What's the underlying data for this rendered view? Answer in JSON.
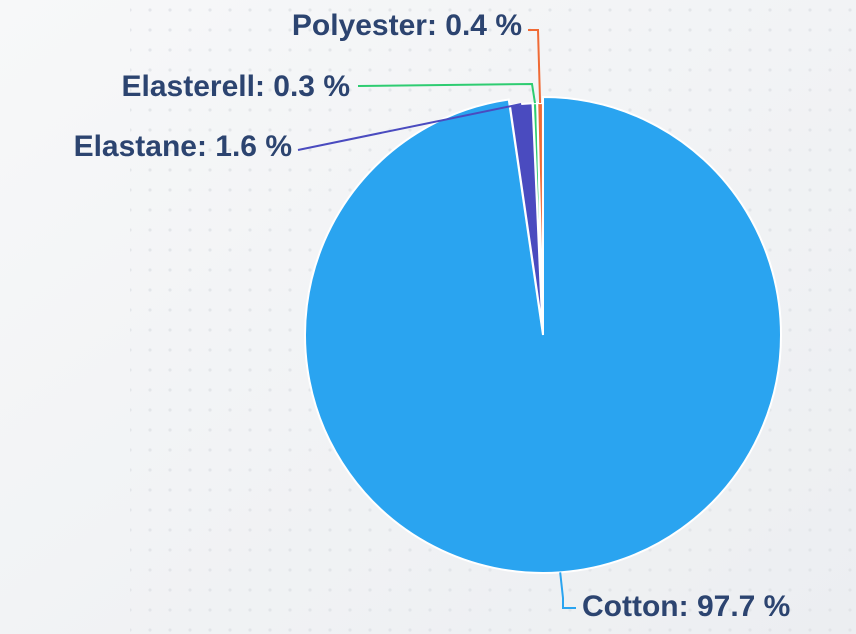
{
  "chart_data": {
    "type": "pie",
    "values": [
      97.7,
      1.6,
      0.3,
      0.4
    ],
    "value_labels": [
      "Cotton: 97.7 %",
      "Elastane: 1.6 %",
      "Elasterell: 0.3 %",
      "Polyester: 0.4 %"
    ],
    "colors": [
      "#2aa4f0",
      "#4a4bbf",
      "#2ecc71",
      "#f06a35"
    ]
  }
}
